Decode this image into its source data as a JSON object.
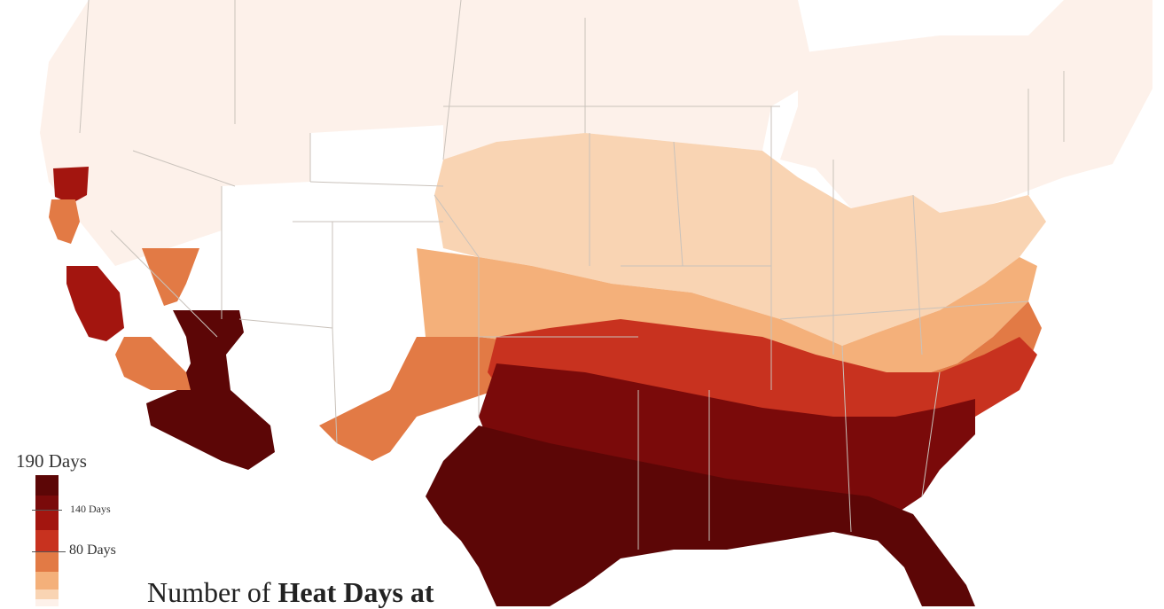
{
  "legend": {
    "top_label": "190 Days",
    "ticks": [
      {
        "label": "140 Days",
        "value": 140,
        "size": "small"
      },
      {
        "label": "80 Days",
        "value": 80,
        "size": "large"
      }
    ],
    "bins": [
      {
        "min": 160,
        "color": "#5c0606"
      },
      {
        "min": 140,
        "color": "#7a0a0a"
      },
      {
        "min": 110,
        "color": "#a3150f"
      },
      {
        "min": 80,
        "color": "#c8321f"
      },
      {
        "min": 50,
        "color": "#e27a45"
      },
      {
        "min": 25,
        "color": "#f4b07a"
      },
      {
        "min": 10,
        "color": "#f9d4b3"
      },
      {
        "min": 0,
        "color": "#fdf1ea"
      }
    ]
  },
  "title": {
    "prefix": "Number of ",
    "bold": "Heat Days at"
  },
  "regions": [
    {
      "name": "northwest",
      "color": "#fdf1ea"
    },
    {
      "name": "north-central",
      "color": "#fdf1ea"
    },
    {
      "name": "northeast",
      "color": "#fdf1ea"
    },
    {
      "name": "midwest-band",
      "color": "#f9d4b3"
    },
    {
      "name": "central-band",
      "color": "#f4b07a"
    },
    {
      "name": "south-central-band",
      "color": "#e27a45"
    },
    {
      "name": "southeast-outer",
      "color": "#c8321f"
    },
    {
      "name": "south-core",
      "color": "#7a0a0a"
    },
    {
      "name": "gulf-core",
      "color": "#5c0606"
    },
    {
      "name": "southwest-desert",
      "color": "#5c0606"
    },
    {
      "name": "california-valley",
      "color": "#a3150f"
    },
    {
      "name": "california-coast",
      "color": "#e27a45"
    }
  ]
}
